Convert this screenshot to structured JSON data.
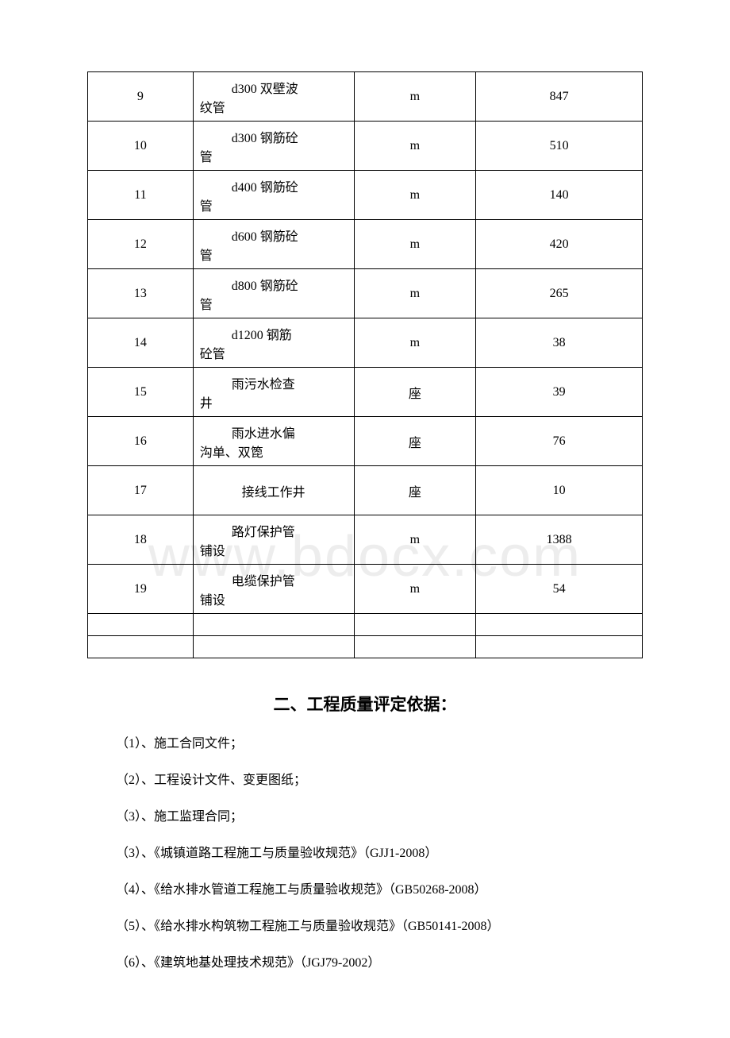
{
  "table": {
    "rows": [
      {
        "num": "9",
        "name1": "d300 双壁波",
        "name2": "纹管",
        "unit": "m",
        "qty": "847"
      },
      {
        "num": "10",
        "name1": "d300 钢筋砼",
        "name2": "管",
        "unit": "m",
        "qty": "510"
      },
      {
        "num": "11",
        "name1": "d400 钢筋砼",
        "name2": "管",
        "unit": "m",
        "qty": "140"
      },
      {
        "num": "12",
        "name1": "d600 钢筋砼",
        "name2": "管",
        "unit": "m",
        "qty": "420"
      },
      {
        "num": "13",
        "name1": "d800 钢筋砼",
        "name2": "管",
        "unit": "m",
        "qty": "265"
      },
      {
        "num": "14",
        "name1": "d1200 钢筋",
        "name2": "砼管",
        "unit": "m",
        "qty": "38"
      },
      {
        "num": "15",
        "name1": "雨污水检查",
        "name2": "井",
        "unit": "座",
        "qty": "39"
      },
      {
        "num": "16",
        "name1": "雨水进水偏",
        "name2": "沟单、双箆",
        "unit": "座",
        "qty": "76"
      },
      {
        "num": "17",
        "name_single": "接线工作井",
        "unit": "座",
        "qty": "10"
      },
      {
        "num": "18",
        "name1": "路灯保护管",
        "name2": "铺设",
        "unit": "m",
        "qty": "1388"
      },
      {
        "num": "19",
        "name1": "电缆保护管",
        "name2": "铺设",
        "unit": "m",
        "qty": "54"
      }
    ],
    "row17_height": 40,
    "row16_height": 52,
    "border_color": "#000000",
    "font_size": 16,
    "col_widths_pct": [
      19,
      29,
      22,
      30
    ]
  },
  "section_title": "二、工程质量评定依据：",
  "list_items": [
    "（1）、施工合同文件；",
    "（2）、工程设计文件、变更图纸；",
    "（3）、施工监理合同；",
    "（3）、《城镇道路工程施工与质量验收规范》（GJJ1-2008）",
    "（4）、《给水排水管道工程施工与质量验收规范》（GB50268-2008）",
    "（5）、《给水排水构筑物工程施工与质量验收规范》（GB50141-2008）",
    "（6）、《建筑地基处理技术规范》（JGJ79-2002）"
  ],
  "watermark_text": "www.bdocx.com",
  "colors": {
    "background": "#ffffff",
    "text": "#000000",
    "watermark": "#ededed"
  },
  "section_title_fontsize": 21,
  "list_fontsize": 16
}
